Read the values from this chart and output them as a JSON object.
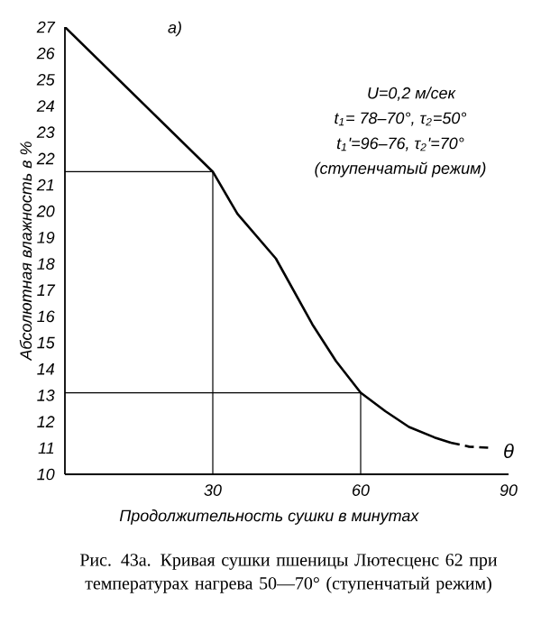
{
  "chart_data": {
    "type": "line",
    "xlabel": "Продолжительность сушки в минутах",
    "ylabel": "Абсолютная влажность в %",
    "xlim": [
      0,
      90
    ],
    "ylim": [
      10,
      27
    ],
    "xticks": [
      30,
      60,
      90
    ],
    "yticks": [
      10,
      11,
      12,
      13,
      14,
      15,
      16,
      17,
      18,
      19,
      20,
      21,
      22,
      23,
      24,
      25,
      26,
      27
    ],
    "grid": false,
    "series": [
      {
        "color": "#000000",
        "line_style": "solid",
        "x": [
          0,
          30,
          35,
          42.8,
          50.2,
          55,
          60,
          65,
          69.8,
          75,
          78.3
        ],
        "values": [
          27,
          21.5,
          19.9,
          18.2,
          15.7,
          14.3,
          13.1,
          12.4,
          11.8,
          11.4,
          11.2
        ]
      },
      {
        "color": "#000000",
        "line_style": "dashed",
        "x": [
          78.3,
          82,
          86.7
        ],
        "values": [
          11.2,
          11.05,
          11.0
        ]
      },
      {
        "color": "#000000",
        "line_style": "solid",
        "x": [
          0,
          30,
          30
        ],
        "values": [
          21.5,
          21.5,
          10
        ]
      },
      {
        "color": "#000000",
        "line_style": "solid",
        "x": [
          0,
          60,
          60
        ],
        "values": [
          13.1,
          13.1,
          10
        ]
      }
    ],
    "annotations": [
      "а)",
      "U=0,2 м/сек",
      "t$_{1}$= 78–70°, τ$_{2}$=50°",
      "t$_{1}$'=96–76, τ$_{2}$'=70°",
      "(ступенчатый режим)",
      "θ",
      "Рис. 43а. Кривая сушки пшеницы Лютесценс 62 при температурах нагрева 50—70° (ступенчатый режим)"
    ]
  }
}
